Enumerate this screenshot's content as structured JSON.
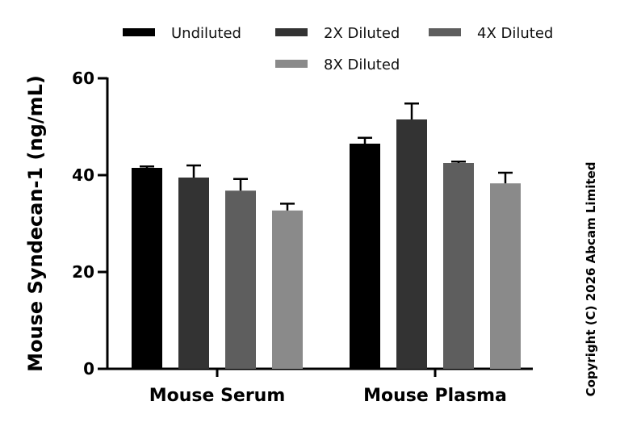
{
  "chart_data": {
    "type": "bar",
    "title": "",
    "xlabel": "",
    "ylabel": "Mouse Syndecan-1 (ng/mL)",
    "ylim": [
      0,
      60
    ],
    "yticks": [
      0,
      20,
      40,
      60
    ],
    "ytick_labels": [
      "0",
      "20",
      "40",
      "60"
    ],
    "categories": [
      "Mouse Serum",
      "Mouse Plasma"
    ],
    "series": [
      {
        "name": "Undiluted",
        "color": "#000000",
        "values": [
          41.5,
          46.5
        ],
        "errors": [
          0.3,
          1.2
        ]
      },
      {
        "name": "2X Diluted",
        "color": "#333333",
        "values": [
          39.5,
          51.5
        ],
        "errors": [
          2.5,
          3.3
        ]
      },
      {
        "name": "4X Diluted",
        "color": "#5e5e5e",
        "values": [
          36.8,
          42.5
        ],
        "errors": [
          2.4,
          0.3
        ]
      },
      {
        "name": "8X Diluted",
        "color": "#8a8a8a",
        "values": [
          32.7,
          38.3
        ],
        "errors": [
          1.4,
          2.2
        ]
      }
    ],
    "legend_position": "top",
    "grid": false
  },
  "copyright": "Copyright (C) 2026 Abcam Limited"
}
